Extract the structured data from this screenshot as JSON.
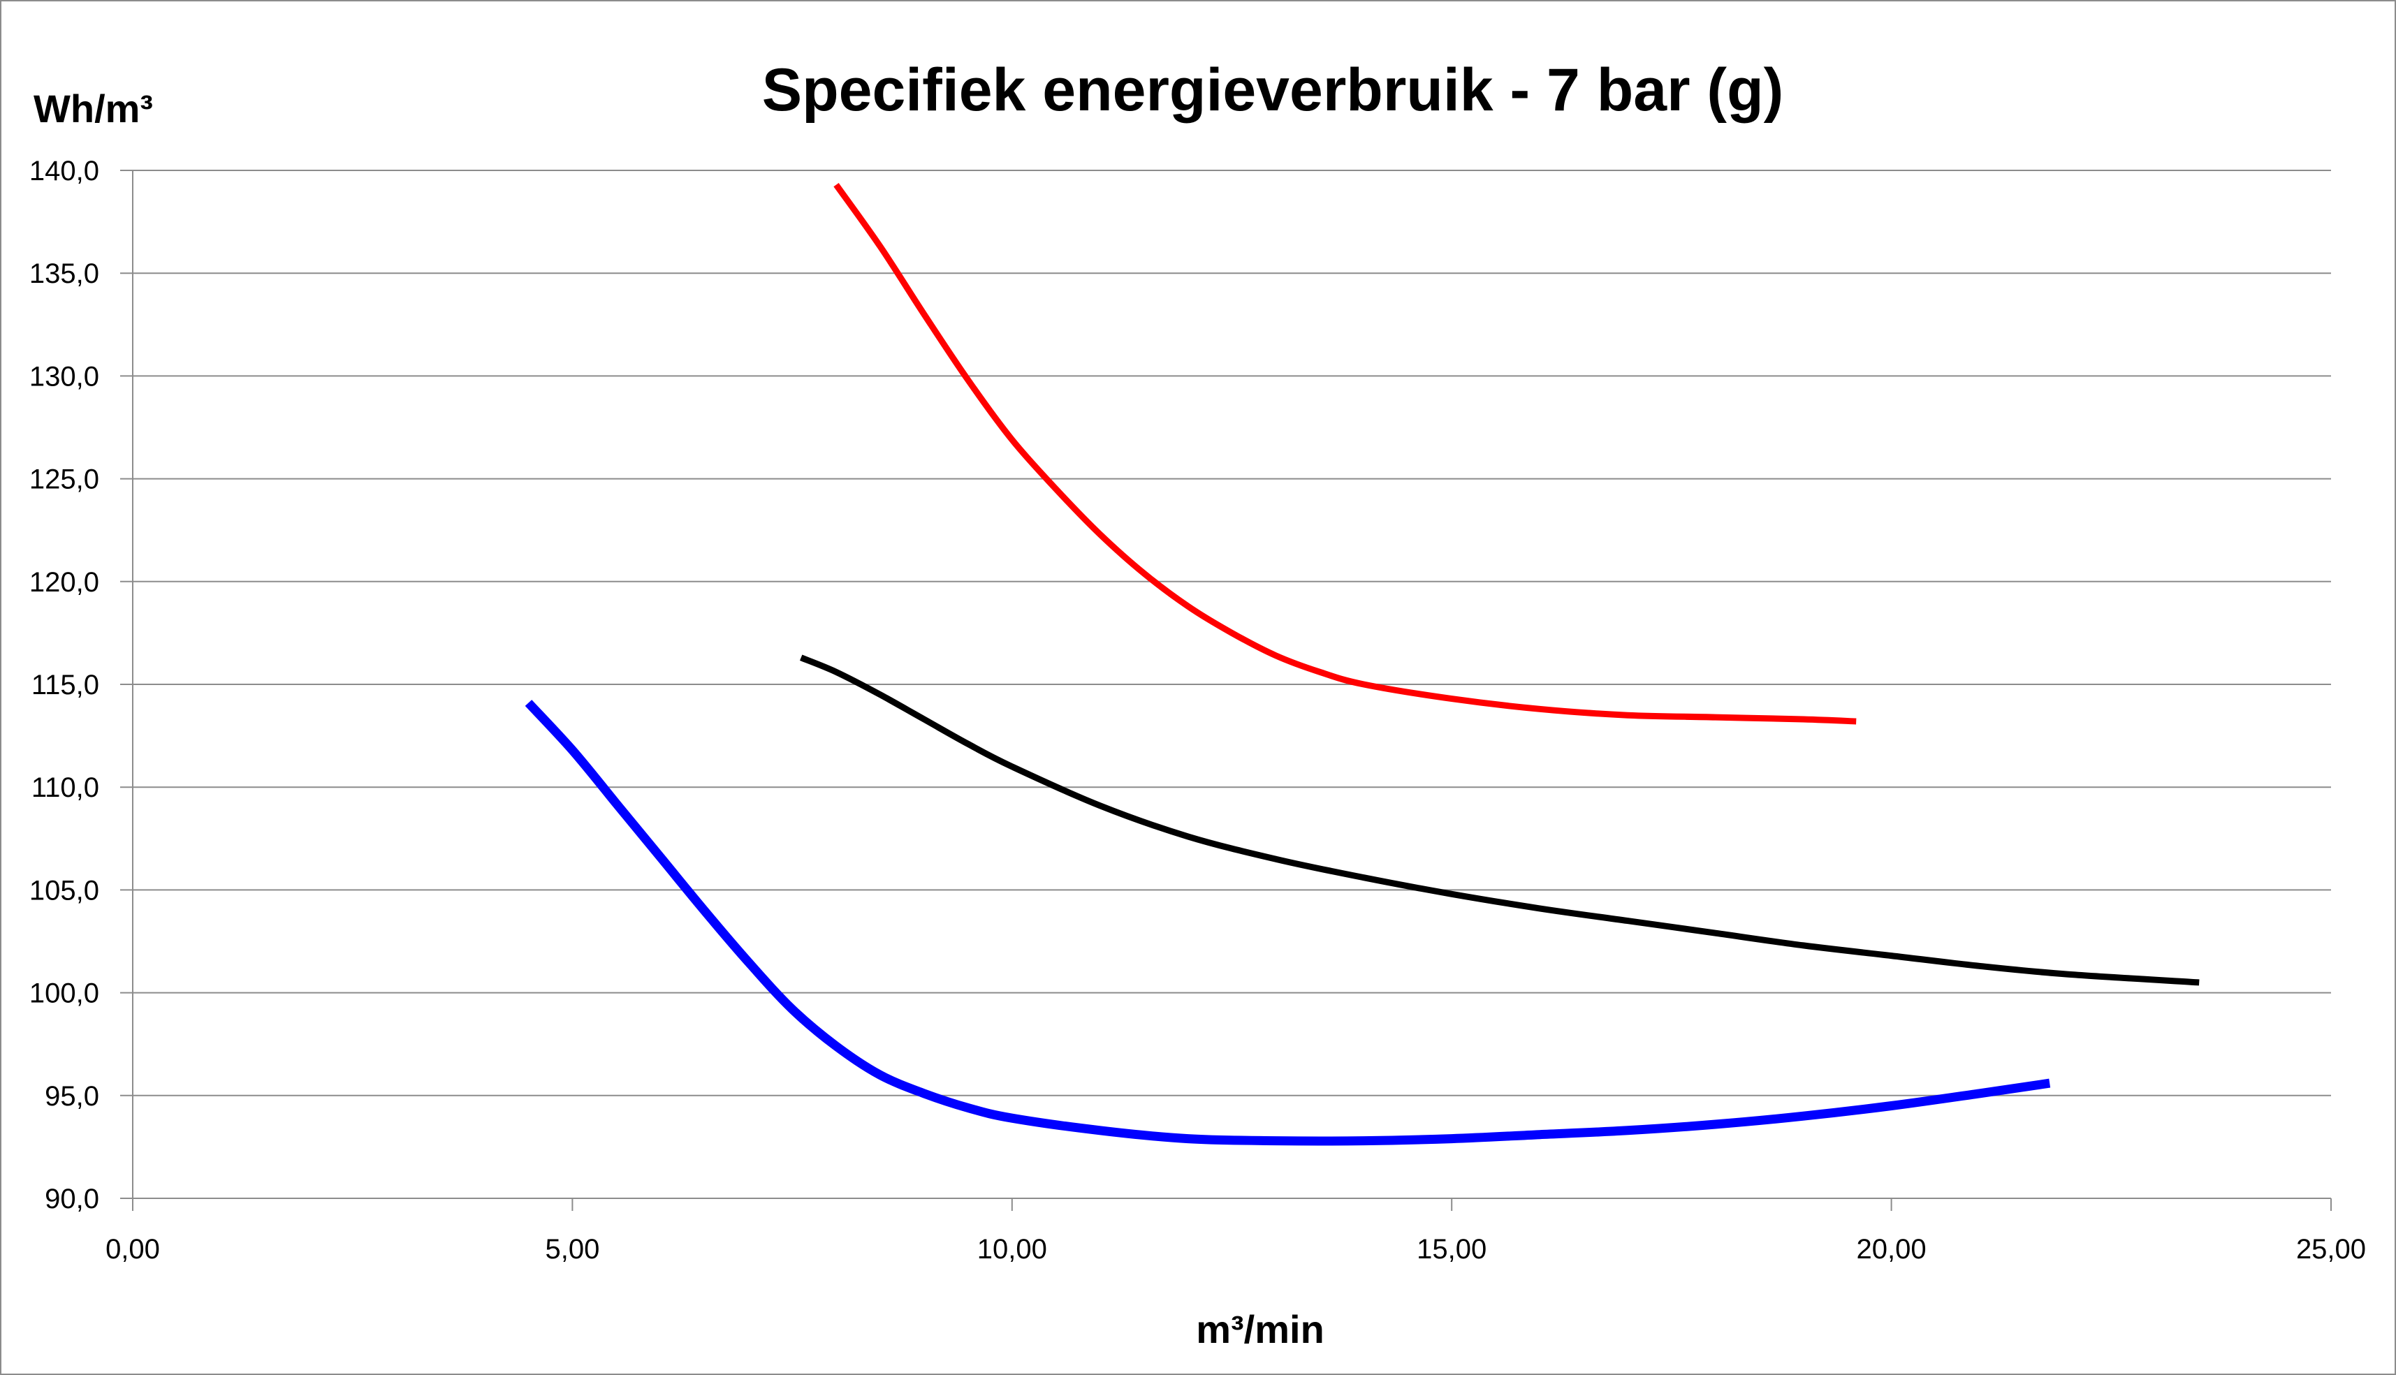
{
  "chart_data": {
    "type": "line",
    "title": "Specifiek energieverbruik - 7 bar (g)",
    "xlabel": "m³/min",
    "ylabel": "Wh/m³",
    "xlim": [
      0,
      25
    ],
    "ylim": [
      90,
      140
    ],
    "x_ticks": [
      "0,00",
      "5,00",
      "10,00",
      "15,00",
      "20,00",
      "25,00"
    ],
    "y_ticks": [
      "90,0",
      "95,0",
      "100,0",
      "105,0",
      "110,0",
      "115,0",
      "120,0",
      "125,0",
      "130,0",
      "135,0",
      "140,0"
    ],
    "grid": true,
    "legend": "none",
    "series": [
      {
        "color": "#ff0000",
        "x": [
          8.0,
          8.5,
          9.0,
          9.5,
          10.0,
          10.5,
          11.0,
          11.5,
          12.0,
          12.5,
          13.0,
          13.5,
          14.0,
          15.0,
          16.0,
          17.0,
          18.0,
          19.0,
          19.6
        ],
        "y": [
          139.3,
          136.3,
          133.0,
          129.8,
          126.9,
          124.5,
          122.3,
          120.4,
          118.8,
          117.5,
          116.4,
          115.6,
          115.0,
          114.3,
          113.8,
          113.5,
          113.4,
          113.3,
          113.2
        ]
      },
      {
        "color": "#000000",
        "x": [
          7.6,
          8.0,
          8.5,
          9.0,
          9.5,
          10.0,
          11.0,
          12.0,
          13.0,
          14.0,
          15.0,
          16.0,
          17.0,
          18.0,
          19.0,
          20.0,
          21.0,
          22.0,
          23.5
        ],
        "y": [
          116.3,
          115.6,
          114.5,
          113.3,
          112.1,
          111.0,
          109.1,
          107.6,
          106.5,
          105.6,
          104.8,
          104.1,
          103.5,
          102.9,
          102.3,
          101.8,
          101.3,
          100.9,
          100.5
        ]
      },
      {
        "color": "#0000ff",
        "x": [
          4.5,
          5.0,
          5.5,
          6.0,
          6.5,
          7.0,
          7.5,
          8.0,
          8.5,
          9.0,
          9.5,
          10.0,
          11.0,
          12.0,
          13.0,
          14.0,
          15.0,
          16.0,
          17.0,
          18.0,
          19.0,
          20.0,
          21.0,
          21.8
        ],
        "y": [
          114.1,
          111.8,
          109.2,
          106.6,
          104.0,
          101.5,
          99.2,
          97.4,
          96.0,
          95.1,
          94.4,
          93.9,
          93.3,
          92.9,
          92.8,
          92.8,
          92.9,
          93.1,
          93.3,
          93.6,
          94.0,
          94.5,
          95.1,
          95.6
        ]
      }
    ]
  }
}
